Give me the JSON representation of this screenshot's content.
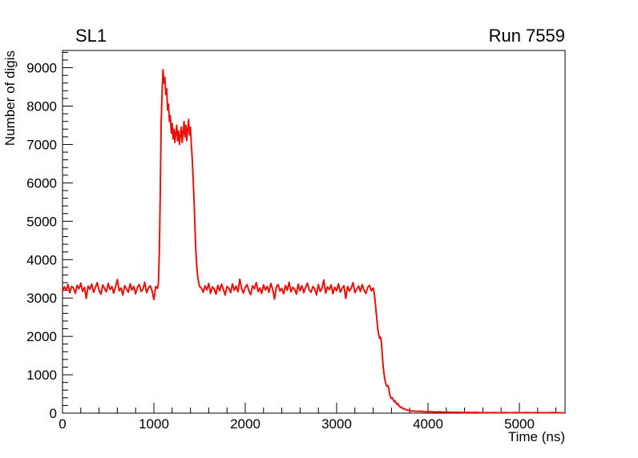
{
  "titles": {
    "left": "SL1",
    "right": "Run 7559"
  },
  "chart_data": {
    "type": "line",
    "title": "SL1",
    "annotation": "Run 7559",
    "xlabel": "Time (ns)",
    "ylabel": "Number of digis",
    "xlim": [
      0,
      5500
    ],
    "ylim": [
      0,
      9450
    ],
    "x_major_ticks": [
      0,
      1000,
      2000,
      3000,
      4000,
      5000
    ],
    "y_major_ticks": [
      0,
      1000,
      2000,
      3000,
      4000,
      5000,
      6000,
      7000,
      8000,
      9000
    ],
    "minor_divisions": 5,
    "grid": false,
    "legend": "none",
    "line_color": "#e8120b",
    "series": [
      {
        "name": "number-of-digis-vs-time",
        "regions": [
          {
            "x0": 0,
            "dx": 20,
            "y": [
              3180,
              3290,
              3210,
              3350,
              3140,
              3300,
              3260,
              3120,
              3330,
              3240,
              3390,
              3170,
              3280,
              2990,
              3310,
              3230,
              3360,
              3150,
              3270,
              3400,
              3200,
              3100,
              3340,
              3250,
              3160,
              3380,
              3220,
              3300,
              3130,
              3290,
              3480,
              3190,
              3260,
              3080,
              3320,
              3240,
              3150,
              3370,
              3210,
              3300,
              3110,
              3280,
              3350,
              3170,
              3230,
              3410,
              3140,
              3260,
              3320,
              3190,
              2960,
              3300,
              3250
            ]
          },
          {
            "x0": 1050,
            "dx": 10,
            "y": [
              3400,
              4200,
              5800,
              7600,
              8400,
              8950,
              8600,
              8750,
              8300,
              8450,
              7900,
              8050,
              7600,
              7750,
              7300,
              7550,
              7150,
              7400,
              7050,
              7300,
              7500,
              7100,
              7350,
              7000,
              7250,
              7450,
              7050,
              7300,
              7600,
              7200,
              7500,
              7100,
              7400,
              7650,
              7250,
              7450,
              7000,
              6600,
              6100,
              5500,
              4800,
              4200,
              3800,
              3550,
              3400,
              3300
            ]
          },
          {
            "x0": 1520,
            "dx": 20,
            "y": [
              3260,
              3150,
              3320,
              3210,
              3380,
              3120,
              3290,
              3240,
              3100,
              3330,
              3190,
              3360,
              3230,
              3080,
              3300,
              3250,
              3140,
              3370,
              3200,
              3310,
              3160,
              3490,
              3250,
              3130,
              3280,
              3350,
              3180,
              3090,
              3320,
              3240,
              3400,
              3170,
              3260,
              3120,
              3340,
              3210,
              3300,
              3150,
              3380,
              3230,
              2970,
              3290,
              3350,
              3180,
              3250,
              3110,
              3330,
              3200,
              3410,
              3160,
              3280,
              3230,
              3100,
              3360,
              3190,
              3320,
              3140,
              3270,
              3390,
              3210,
              3150,
              3300,
              3240,
              3080,
              3350,
              3170,
              3260,
              3470,
              3130,
              3290,
              3220,
              3340,
              3110,
              3280,
              3190,
              3370,
              3150,
              3250,
              3320,
              2990,
              3300,
              3180,
              3260,
              3400,
              3140,
              3230,
              3310,
              3170,
              3350,
              3200,
              3120,
              3280,
              3330,
              3190,
              3260
            ]
          },
          {
            "x0": 3410,
            "dx": 10,
            "y": [
              3150,
              2950,
              2700,
              2450,
              2200,
              2050,
              1950,
              1980,
              1850,
              1500,
              1200,
              1000,
              850,
              750,
              700,
              720,
              650,
              500,
              420,
              380,
              400,
              350,
              300,
              320,
              270,
              230,
              250,
              200,
              170,
              150,
              160,
              130,
              110,
              120,
              100,
              90,
              80,
              85,
              70,
              60
            ]
          },
          {
            "x0": 3840,
            "dx": 40,
            "y": [
              55,
              45,
              50,
              40,
              35,
              40,
              30,
              35,
              25,
              30,
              25,
              20,
              25,
              20,
              15,
              20,
              15,
              20,
              15,
              10,
              15,
              10,
              15,
              10,
              10,
              15,
              10,
              10,
              15,
              10,
              10,
              15,
              10,
              10,
              15,
              10,
              10,
              10,
              15,
              10,
              10,
              10
            ]
          }
        ]
      }
    ]
  }
}
